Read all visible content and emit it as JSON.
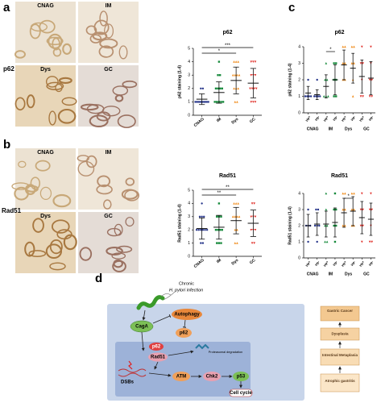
{
  "chart_data": [
    {
      "type": "dotplot",
      "title": "p62",
      "y_label": "p62 staining (1-4)",
      "categories": [
        "CNAG",
        "IM",
        "Dys",
        "GC"
      ],
      "colors": [
        "#26358a",
        "#178a3c",
        "#f08c1c",
        "#e0302a"
      ],
      "markers": [
        "circle",
        "square",
        "triangle",
        "triangle-down"
      ],
      "values": [
        1.2,
        1.7,
        2.6,
        2.4
      ],
      "errors": [
        0.4,
        0.8,
        1.0,
        1.1
      ],
      "points": [
        [
          1,
          1,
          1,
          1,
          1,
          1,
          1,
          1,
          1,
          1,
          2,
          2
        ],
        [
          1,
          1,
          1,
          1,
          1,
          2,
          2,
          2,
          2,
          3,
          3,
          4
        ],
        [
          1,
          1,
          2,
          2,
          2,
          3,
          3,
          3,
          3,
          4,
          4,
          4
        ],
        [
          1,
          1,
          1,
          2,
          2,
          2,
          2,
          3,
          3,
          3,
          4,
          4,
          4
        ]
      ],
      "ylim": [
        0,
        5
      ],
      "yticks": [
        0,
        1,
        2,
        3,
        4,
        5
      ],
      "significance": [
        {
          "from": 0,
          "to": 2,
          "label": "*"
        },
        {
          "from": 0,
          "to": 3,
          "label": "***"
        }
      ]
    },
    {
      "type": "dotplot",
      "title": "p62",
      "y_label": "p62 staining (1-4)",
      "categories": [
        "Hp+",
        "Hp-",
        "Hp+",
        "Hp-",
        "Hp+",
        "Hp-",
        "Hp+",
        "Hp-"
      ],
      "group_labels": [
        "CNAG",
        "IM",
        "Dys",
        "GC"
      ],
      "colors": [
        "#26358a",
        "#26358a",
        "#178a3c",
        "#178a3c",
        "#f08c1c",
        "#f08c1c",
        "#e0302a",
        "#e0302a"
      ],
      "markers": [
        "circle",
        "circle",
        "triangle",
        "square",
        "triangle",
        "triangle",
        "triangle-down",
        "triangle-down"
      ],
      "values": [
        1.2,
        1.1,
        1.6,
        2.0,
        2.9,
        2.7,
        2.2,
        2.1
      ],
      "errors": [
        0.4,
        0.3,
        0.7,
        0.9,
        0.9,
        0.9,
        1.0,
        1.0
      ],
      "points": [
        [
          1,
          1,
          1,
          1,
          2
        ],
        [
          1,
          1,
          1,
          1,
          2
        ],
        [
          1,
          1,
          1,
          2,
          2,
          3
        ],
        [
          1,
          1,
          2,
          2,
          3,
          3
        ],
        [
          2,
          2,
          3,
          3,
          4,
          4
        ],
        [
          1,
          2,
          3,
          3,
          4,
          4
        ],
        [
          1,
          1,
          2,
          3,
          3,
          4
        ],
        [
          1,
          1,
          2,
          2,
          3,
          4
        ]
      ],
      "ylim": [
        0,
        4
      ],
      "yticks": [
        0,
        1,
        2,
        3,
        4
      ],
      "significance": [
        {
          "from": 2,
          "to": 3,
          "label": "*"
        }
      ]
    },
    {
      "type": "dotplot",
      "title": "Rad51",
      "y_label": "Rad51 staining (1-4)",
      "categories": [
        "CNAG",
        "IM",
        "Dys",
        "GC"
      ],
      "colors": [
        "#26358a",
        "#178a3c",
        "#f08c1c",
        "#e0302a"
      ],
      "markers": [
        "circle",
        "square",
        "triangle",
        "triangle-down"
      ],
      "values": [
        2.1,
        2.2,
        2.7,
        2.5
      ],
      "errors": [
        0.8,
        0.9,
        1.0,
        1.0
      ],
      "points": [
        [
          1,
          1,
          2,
          2,
          2,
          2,
          2,
          2,
          3,
          3,
          3,
          4
        ],
        [
          1,
          1,
          1,
          2,
          2,
          2,
          2,
          3,
          3,
          3,
          4
        ],
        [
          1,
          1,
          2,
          2,
          3,
          3,
          3,
          3,
          4,
          4,
          4
        ],
        [
          1,
          1,
          2,
          2,
          2,
          3,
          3,
          3,
          4,
          4
        ]
      ],
      "ylim": [
        0,
        5
      ],
      "yticks": [
        0,
        1,
        2,
        3,
        4,
        5
      ],
      "significance": [
        {
          "from": 0,
          "to": 2,
          "label": "**"
        },
        {
          "from": 0,
          "to": 3,
          "label": "**"
        }
      ]
    },
    {
      "type": "dotplot",
      "title": "Rad51",
      "y_label": "Rad51 staining (1-4)",
      "categories": [
        "Hp+",
        "Hp-",
        "Hp+",
        "Hp-",
        "Hp+",
        "Hp-",
        "Hp+",
        "Hp-"
      ],
      "group_labels": [
        "CNAG",
        "IM",
        "Dys",
        "GC"
      ],
      "colors": [
        "#26358a",
        "#26358a",
        "#178a3c",
        "#178a3c",
        "#f08c1c",
        "#f08c1c",
        "#e0302a",
        "#e0302a"
      ],
      "markers": [
        "circle",
        "circle",
        "triangle",
        "square",
        "triangle",
        "triangle",
        "triangle-down",
        "triangle-down"
      ],
      "values": [
        2.0,
        2.1,
        2.1,
        2.2,
        2.8,
        2.9,
        2.5,
        2.4
      ],
      "errors": [
        0.7,
        0.7,
        0.8,
        0.9,
        0.9,
        0.9,
        1.0,
        1.0
      ],
      "points": [
        [
          1,
          2,
          2,
          2,
          3
        ],
        [
          1,
          2,
          2,
          2,
          3,
          3
        ],
        [
          1,
          1,
          2,
          2,
          3,
          4
        ],
        [
          1,
          2,
          2,
          3,
          3,
          4
        ],
        [
          2,
          2,
          3,
          3,
          4,
          4
        ],
        [
          2,
          2,
          3,
          3,
          4,
          4
        ],
        [
          1,
          2,
          2,
          3,
          3,
          4
        ],
        [
          1,
          1,
          2,
          3,
          3,
          4
        ]
      ],
      "ylim": [
        0,
        4
      ],
      "yticks": [
        0,
        1,
        2,
        3,
        4
      ],
      "significance": [
        {
          "from": 4,
          "to": 5,
          "label": "*"
        }
      ]
    }
  ],
  "figure": {
    "panel_labels": [
      "a",
      "b",
      "c",
      "d"
    ],
    "row_labels": [
      "p62",
      "Rad51"
    ],
    "image_labels": [
      [
        "CNAG",
        "IM",
        "Dys",
        "GC"
      ],
      [
        "CNAG",
        "IM",
        "Dys",
        "GC"
      ]
    ],
    "diagram": {
      "infection": [
        "Chronic",
        "H. pylori infection"
      ],
      "nodes": {
        "autophagy": "Autophagy",
        "caga": "CagA",
        "p62_cyt": "p62",
        "p62_nuc": "p62",
        "rad51": "Rad51",
        "degradation": "Proteasomal degradation",
        "dsbs": "DSBs",
        "atm": "ATM",
        "chk2": "Chk2",
        "p53": "p53",
        "cell_cycle": "Cell cycle"
      },
      "stages": [
        "Gastric Cancer",
        "Dysplasia",
        "Intestinal Metaplasia",
        "Atrophic gastritis"
      ]
    }
  }
}
